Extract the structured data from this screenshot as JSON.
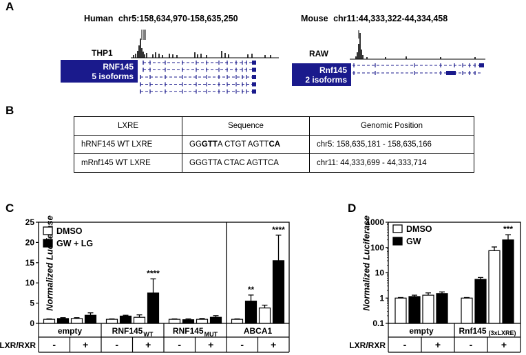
{
  "panelA": {
    "letter": "A",
    "human_label": "Human",
    "human_coords": "chr5:158,634,970-158,635,250",
    "mouse_label": "Mouse",
    "mouse_coords": "chr11:44,333,322-44,334,458",
    "human_track": "THP1",
    "mouse_track": "RAW",
    "human_gene": "RNF145",
    "human_isoforms": "5 isoforms",
    "mouse_gene": "Rnf145",
    "mouse_isoforms": "2 isoforms",
    "gene_color": "#1a1a8c"
  },
  "panelB": {
    "letter": "B",
    "headers": [
      "LXRE",
      "Sequence",
      "Genomic Position"
    ],
    "rows": [
      {
        "name": "hRNF145 WT LXRE",
        "seq_parts": [
          [
            "GG",
            false
          ],
          [
            "GTT",
            true
          ],
          [
            "A CTGT AGTT",
            false
          ],
          [
            "CA",
            true
          ]
        ],
        "position": "chr5: 158,635,181 - 158,635,166"
      },
      {
        "name": "mRnf145 WT LXRE",
        "seq_parts": [
          [
            "GGGTTA CTAC AGTTCA",
            false
          ]
        ],
        "position": "chr11: 44,333,699 - 44,333,714"
      }
    ]
  },
  "panelC": {
    "letter": "C",
    "ylabel": "Normalized  Luciferase",
    "legend": [
      "DMSO",
      "GW + LG"
    ],
    "row_label": "LXR/RXR",
    "chart_data": {
      "type": "bar",
      "ylim": [
        0,
        25
      ],
      "yticks": [
        "0",
        "5",
        "10",
        "15",
        "20",
        "25"
      ],
      "group_labels": [
        {
          "main": "empty",
          "sub": ""
        },
        {
          "main": "RNF145",
          "sub": "WT"
        },
        {
          "main": "RNF145",
          "sub": "MUT"
        },
        {
          "main": "ABCA1",
          "sub": ""
        }
      ],
      "lxr": [
        "-",
        "+",
        "-",
        "+",
        "-",
        "+",
        "-",
        "+"
      ],
      "bars": [
        {
          "v": 1.0,
          "e": 0.1,
          "fill": "white"
        },
        {
          "v": 1.2,
          "e": 0.2,
          "fill": "black"
        },
        {
          "v": 1.2,
          "e": 0.2,
          "fill": "white"
        },
        {
          "v": 2.0,
          "e": 0.6,
          "fill": "black"
        },
        {
          "v": 1.0,
          "e": 0.1,
          "fill": "white"
        },
        {
          "v": 1.8,
          "e": 0.2,
          "fill": "black"
        },
        {
          "v": 1.5,
          "e": 0.6,
          "fill": "white"
        },
        {
          "v": 7.5,
          "e": 3.5,
          "fill": "black"
        },
        {
          "v": 1.0,
          "e": 0.1,
          "fill": "white"
        },
        {
          "v": 0.9,
          "e": 0.2,
          "fill": "black"
        },
        {
          "v": 1.0,
          "e": 0.2,
          "fill": "white"
        },
        {
          "v": 1.5,
          "e": 0.4,
          "fill": "black"
        },
        {
          "v": 1.0,
          "e": 0.1,
          "fill": "white"
        },
        {
          "v": 5.5,
          "e": 1.5,
          "fill": "black"
        },
        {
          "v": 3.8,
          "e": 0.7,
          "fill": "white"
        },
        {
          "v": 15.5,
          "e": 6.3,
          "fill": "black"
        }
      ],
      "stars": [
        {
          "bar": 7,
          "text": "****"
        },
        {
          "bar": 13,
          "text": "**"
        },
        {
          "bar": 15,
          "text": "****"
        }
      ]
    }
  },
  "panelD": {
    "letter": "D",
    "ylabel": "Normalized  Luciferase",
    "legend": [
      "DMSO",
      "GW"
    ],
    "row_label": "LXR/RXR",
    "chart_data": {
      "type": "bar",
      "scale": "log",
      "ylim": [
        0.1,
        1000
      ],
      "yticks": [
        "0.1",
        "1",
        "10",
        "100",
        "1000"
      ],
      "group_labels": [
        {
          "main": "empty",
          "sub": ""
        },
        {
          "main": "Rnf145",
          "sub": "(3xLXRE)"
        }
      ],
      "lxr": [
        "-",
        "+",
        "-",
        "+"
      ],
      "bars": [
        {
          "v": 1.0,
          "e": 0.05,
          "fill": "white"
        },
        {
          "v": 1.15,
          "e": 0.15,
          "fill": "black"
        },
        {
          "v": 1.3,
          "e": 0.3,
          "fill": "white"
        },
        {
          "v": 1.5,
          "e": 0.25,
          "fill": "black"
        },
        {
          "v": 1.0,
          "e": 0.05,
          "fill": "white"
        },
        {
          "v": 5.5,
          "e": 1.0,
          "fill": "black"
        },
        {
          "v": 75,
          "e": 30,
          "fill": "white"
        },
        {
          "v": 200,
          "e": 120,
          "fill": "black"
        }
      ],
      "stars": [
        {
          "bar": 7,
          "text": "***"
        }
      ]
    }
  }
}
